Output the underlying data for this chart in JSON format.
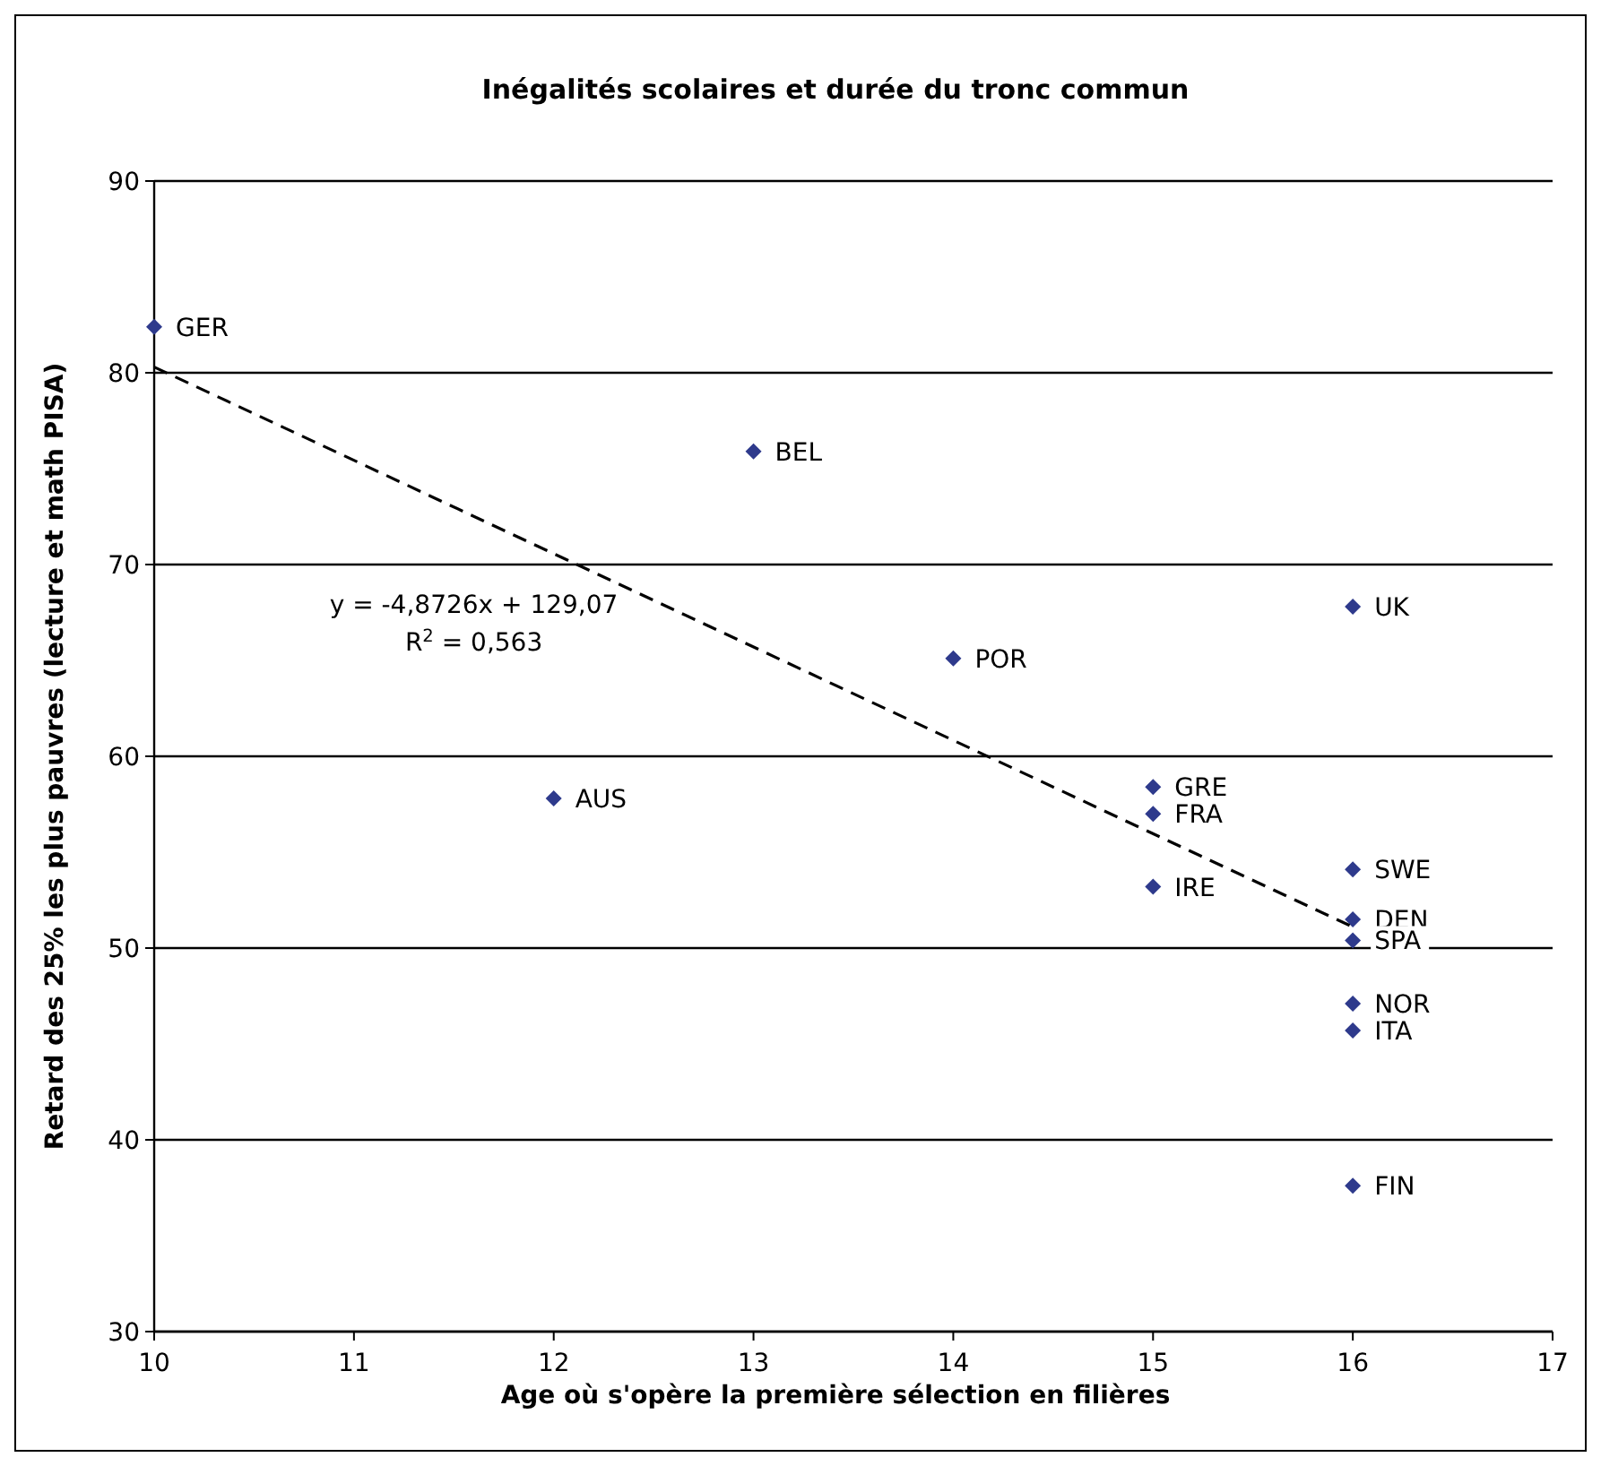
{
  "chart_data": {
    "type": "scatter",
    "title": "Inégalités scolaires et durée du tronc commun",
    "xlabel": "Age où s'opère la première sélection en filières",
    "ylabel": "Retard des 25% les plus pauvres (lecture et math PISA)",
    "xlim": [
      10,
      17
    ],
    "xticks": [
      10,
      11,
      12,
      13,
      14,
      15,
      16,
      17
    ],
    "ylim": [
      30,
      90
    ],
    "yticks": [
      30,
      40,
      50,
      60,
      70,
      80,
      90
    ],
    "grid": "y",
    "marker": "diamond",
    "series": [
      {
        "color": "#2e3a8c",
        "x": [
          10,
          13,
          16,
          14,
          12,
          15,
          15,
          15,
          16,
          16,
          16,
          16,
          16,
          16
        ],
        "values": [
          82.4,
          75.9,
          67.8,
          65.1,
          57.8,
          58.4,
          57.0,
          53.2,
          54.1,
          51.5,
          50.4,
          47.1,
          45.7,
          37.6
        ]
      },
      {
        "type": "line",
        "color": "#000000",
        "line_style": "dashed",
        "marker": "none",
        "x": [
          10,
          16
        ],
        "values": [
          80.3,
          51.1
        ]
      }
    ],
    "annotations": [
      {
        "text": "GER",
        "x": 10,
        "y": 82.4
      },
      {
        "text": "BEL",
        "x": 13,
        "y": 75.9
      },
      {
        "text": "UK",
        "x": 16,
        "y": 67.8
      },
      {
        "text": "POR",
        "x": 14,
        "y": 65.1
      },
      {
        "text": "AUS",
        "x": 12,
        "y": 57.8
      },
      {
        "text": "GRE",
        "x": 15,
        "y": 58.4
      },
      {
        "text": "FRA",
        "x": 15,
        "y": 57.0
      },
      {
        "text": "IRE",
        "x": 15,
        "y": 53.2
      },
      {
        "text": "SWE",
        "x": 16,
        "y": 54.1
      },
      {
        "text": "DEN",
        "x": 16,
        "y": 51.5
      },
      {
        "text": "SPA",
        "x": 16,
        "y": 50.4
      },
      {
        "text": "NOR",
        "x": 16,
        "y": 47.1
      },
      {
        "text": "ITA",
        "x": 16,
        "y": 45.7
      },
      {
        "text": "FIN",
        "x": 16,
        "y": 37.6
      },
      "y = -4,8726x + 129,07",
      "R$^{2}$ = 0,563"
    ]
  }
}
